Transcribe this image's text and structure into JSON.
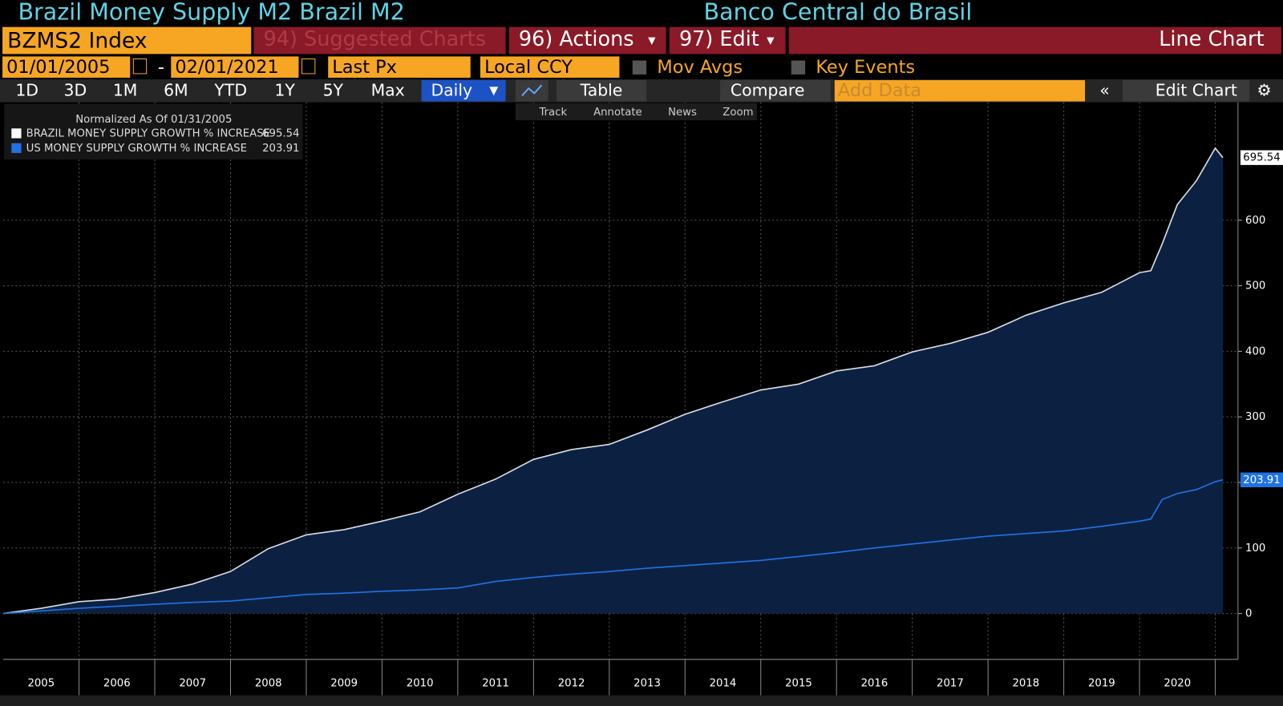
{
  "header": {
    "title": "Brazil Money Supply M2 Brazil M2",
    "source": "Banco Central do Brasil"
  },
  "toolbar": {
    "ticker": "BZMS2 Index",
    "suggested": "94) Suggested Charts",
    "actions": "96) Actions",
    "edit": "97) Edit",
    "chart_type": "Line Chart"
  },
  "controls": {
    "start": "01/01/2005",
    "dash": "-",
    "end": "02/01/2021",
    "field": "Last Px",
    "currency": "Local CCY",
    "mov_avgs": "Mov Avgs",
    "key_events": "Key Events"
  },
  "periods": [
    "1D",
    "3D",
    "1M",
    "6M",
    "YTD",
    "1Y",
    "5Y",
    "Max"
  ],
  "buttons": {
    "frequency": "Daily",
    "table": "Table",
    "compare": "Compare",
    "add_data": "Add Data",
    "edit_chart": "Edit Chart"
  },
  "tools": [
    "Track",
    "Annotate",
    "News",
    "Zoom"
  ],
  "chart_data": {
    "type": "line",
    "subtitle": "Normalized As Of 01/31/2005",
    "x": [
      2005.0,
      2005.5,
      2006.0,
      2006.5,
      2007.0,
      2007.5,
      2008.0,
      2008.5,
      2009.0,
      2009.5,
      2010.0,
      2010.5,
      2011.0,
      2011.5,
      2012.0,
      2012.5,
      2013.0,
      2013.5,
      2014.0,
      2014.5,
      2015.0,
      2015.5,
      2016.0,
      2016.5,
      2017.0,
      2017.5,
      2018.0,
      2018.5,
      2019.0,
      2019.5,
      2020.0,
      2020.15,
      2020.3,
      2020.5,
      2020.75,
      2021.0,
      2021.1
    ],
    "series": [
      {
        "name": "BRAZIL MONEY SUPPLY GROWTH % INCREASE",
        "color": "#d9dde6",
        "fill": "#0c2142",
        "values": [
          0,
          8,
          18,
          22,
          32,
          45,
          64,
          99,
          120,
          128,
          141,
          155,
          182,
          205,
          235,
          250,
          258,
          280,
          304,
          323,
          341,
          350,
          370,
          378,
          399,
          412,
          429,
          455,
          474,
          490,
          520,
          523,
          564,
          624,
          660,
          710,
          695.54
        ]
      },
      {
        "name": "US MONEY SUPPLY GROWTH % INCREASE",
        "color": "#1f73e6",
        "values": [
          0,
          4,
          8,
          11,
          14,
          17,
          19,
          24,
          29,
          31,
          34,
          36,
          39,
          49,
          55,
          60,
          64,
          69,
          73,
          77,
          81,
          87,
          93,
          100,
          106,
          112,
          118,
          122,
          126,
          133,
          141,
          144,
          174,
          183,
          189,
          201,
          203.91
        ]
      }
    ],
    "xlim": [
      2005,
      2021.3
    ],
    "xticks": [
      {
        "value": 2005.5,
        "label": "2005"
      },
      {
        "value": 2006.5,
        "label": "2006"
      },
      {
        "value": 2007.5,
        "label": "2007"
      },
      {
        "value": 2008.5,
        "label": "2008"
      },
      {
        "value": 2009.5,
        "label": "2009"
      },
      {
        "value": 2010.5,
        "label": "2010"
      },
      {
        "value": 2011.5,
        "label": "2011"
      },
      {
        "value": 2012.5,
        "label": "2012"
      },
      {
        "value": 2013.5,
        "label": "2013"
      },
      {
        "value": 2014.5,
        "label": "2014"
      },
      {
        "value": 2015.5,
        "label": "2015"
      },
      {
        "value": 2016.5,
        "label": "2016"
      },
      {
        "value": 2017.5,
        "label": "2017"
      },
      {
        "value": 2018.5,
        "label": "2018"
      },
      {
        "value": 2019.5,
        "label": "2019"
      },
      {
        "value": 2020.5,
        "label": "2020"
      }
    ],
    "xgrid": [
      2006,
      2007,
      2008,
      2009,
      2010,
      2011,
      2012,
      2013,
      2014,
      2015,
      2016,
      2017,
      2018,
      2019,
      2020,
      2021
    ],
    "ylim": [
      -70,
      780
    ],
    "yticks": [
      0,
      100,
      200,
      300,
      400,
      500,
      600
    ],
    "grid": true,
    "legend": "upper left"
  }
}
